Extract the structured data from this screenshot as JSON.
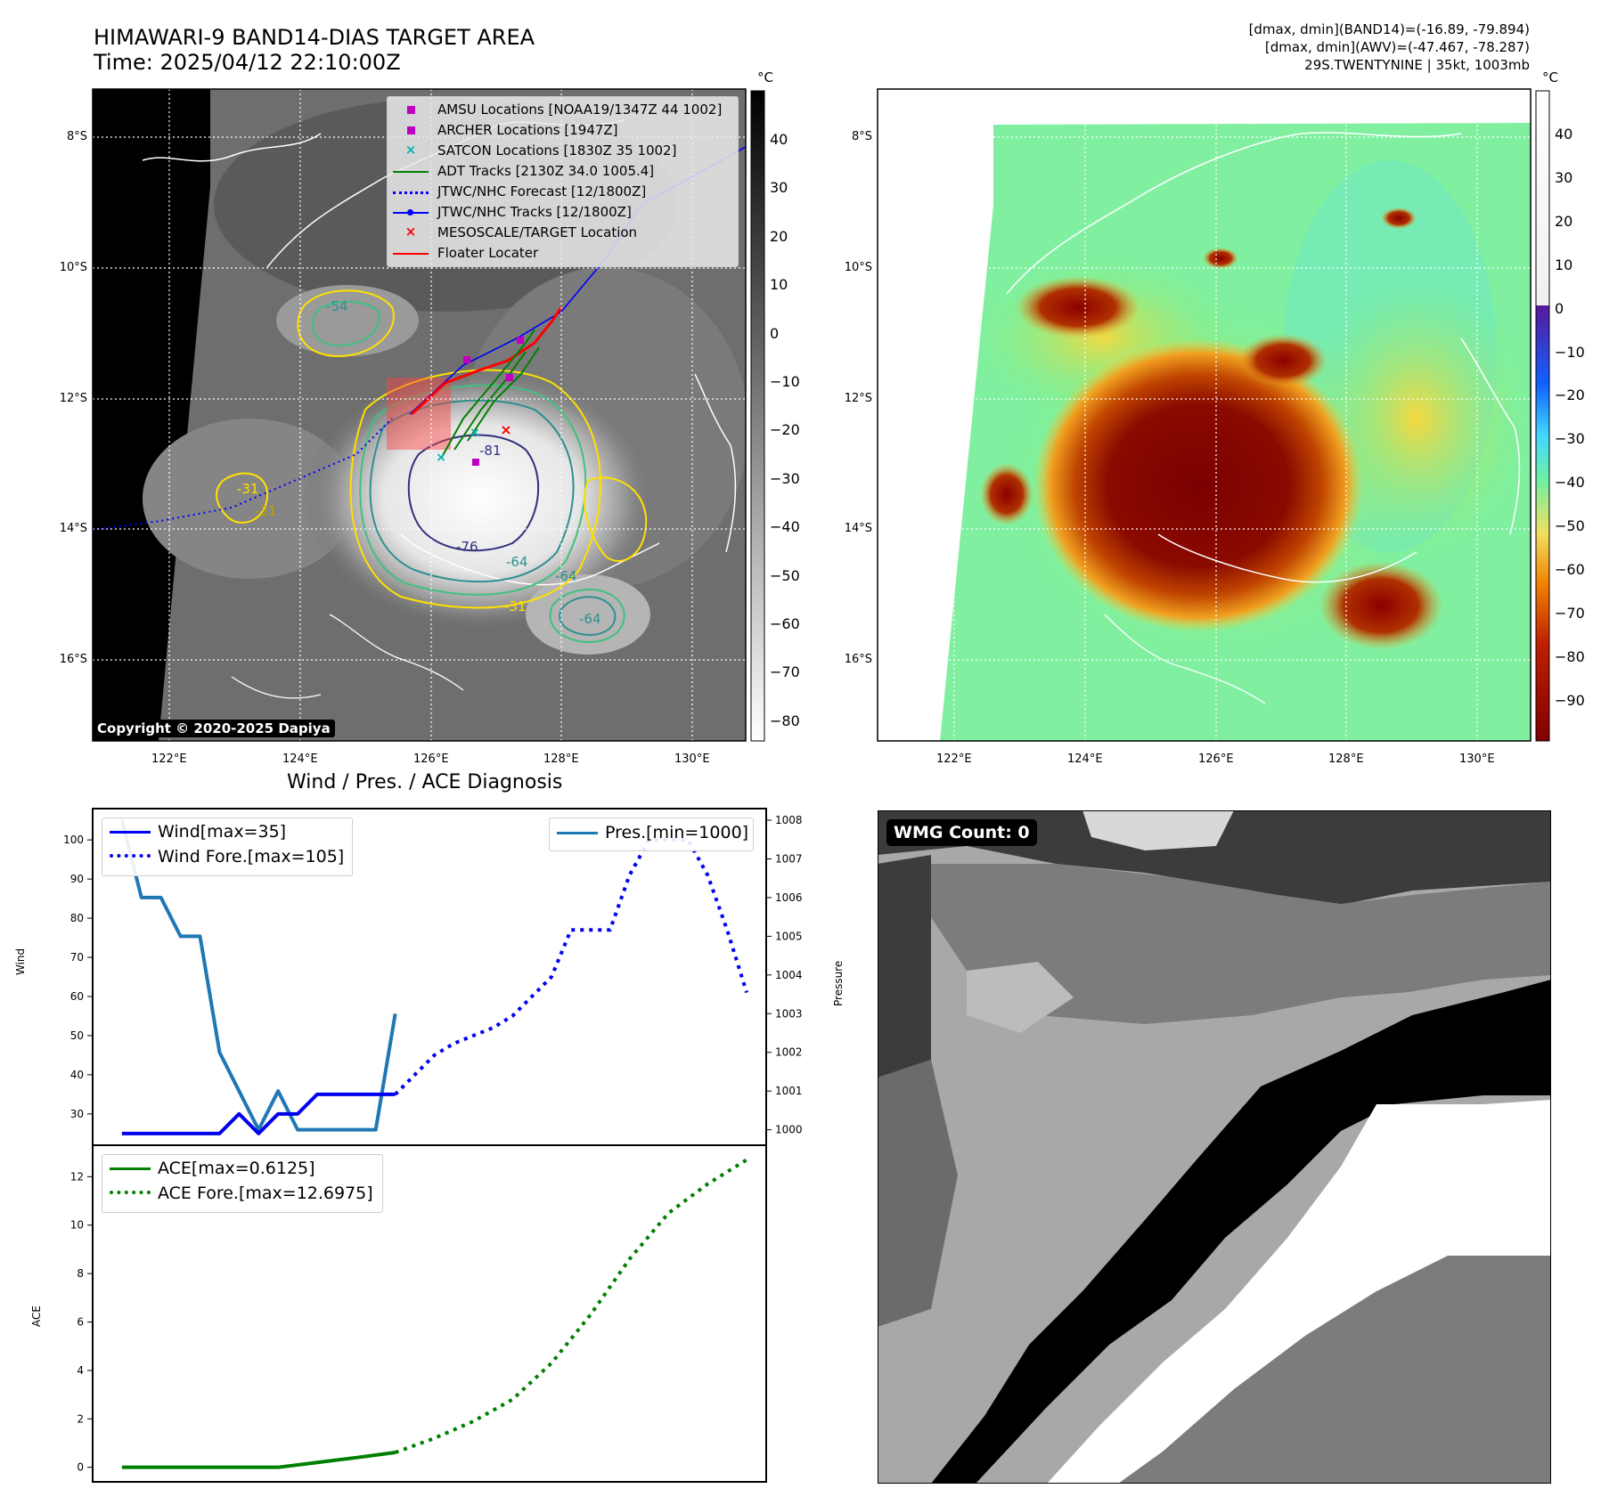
{
  "header": {
    "title_line1": "HIMAWARI-9 BAND14-DIAS TARGET AREA",
    "title_line2": "Time: 2025/04/12 22:10:00Z",
    "info_line1": "[dmax, dmin](BAND14)=(-16.89, -79.894)",
    "info_line2": "[dmax, dmin](AWV)=(-47.467, -78.287)",
    "info_line3": "29S.TWENTYNINE | 35kt, 1003mb"
  },
  "map_common": {
    "lon_ticks": [
      "122°E",
      "124°E",
      "126°E",
      "128°E",
      "130°E"
    ],
    "lat_ticks": [
      "8°S",
      "10°S",
      "12°S",
      "14°S",
      "16°S"
    ]
  },
  "map_left": {
    "legend": [
      {
        "label": "AMSU Locations [NOAA19/1347Z 44 1002]",
        "marker": "square",
        "color": "#c000c0"
      },
      {
        "label": "ARCHER Locations [1947Z]",
        "marker": "square",
        "color": "#c000c0"
      },
      {
        "label": "SATCON Locations [1830Z 35 1002]",
        "marker": "x",
        "color": "#00b5b5"
      },
      {
        "label": "ADT Tracks [2130Z 34.0 1005.4]",
        "marker": "line",
        "color": "#008000"
      },
      {
        "label": "JTWC/NHC Forecast [12/1800Z]",
        "marker": "dotted",
        "color": "#0000ff"
      },
      {
        "label": "JTWC/NHC Tracks [12/1800Z]",
        "marker": "line-dot",
        "color": "#0000ff"
      },
      {
        "label": "MESOSCALE/TARGET Location",
        "marker": "x",
        "color": "#ff0000"
      },
      {
        "label": "Floater Locater",
        "marker": "line",
        "color": "#ff0000"
      }
    ],
    "contour_labels": [
      "-54",
      "-31",
      "-31",
      "-81",
      "-76",
      "-64",
      "-64",
      "-64",
      "-31"
    ],
    "copyright": "Copyright © 2020-2025 Dapiya",
    "colorbar": {
      "unit": "°C",
      "ticks": [
        "40",
        "30",
        "20",
        "10",
        "0",
        "−10",
        "−20",
        "−30",
        "−40",
        "−50",
        "−60",
        "−70",
        "−80"
      ]
    }
  },
  "map_right": {
    "colorbar": {
      "unit": "°C",
      "ticks": [
        "40",
        "30",
        "20",
        "10",
        "0",
        "−10",
        "−20",
        "−30",
        "−40",
        "−50",
        "−60",
        "−70",
        "−80",
        "−90"
      ]
    }
  },
  "diagnosis": {
    "title": "Wind / Pres. / ACE Diagnosis",
    "wind_ylabel": "Wind",
    "pres_ylabel": "Pressure",
    "ace_ylabel": "ACE",
    "wind_legend": [
      "Wind[max=35]",
      "Wind Fore.[max=105]"
    ],
    "pres_legend": [
      "Pres.[min=1000]"
    ],
    "ace_legend": [
      "ACE[max=0.6125]",
      "ACE Fore.[max=12.6975]"
    ]
  },
  "wmg": {
    "label": "WMG Count: 0"
  },
  "colors": {
    "wind": "#0000ee",
    "pressure": "#1f77b4",
    "ace": "#007f00"
  },
  "chart_data": [
    {
      "type": "line",
      "title": "Wind / Pres. / ACE Diagnosis",
      "ylabel": "Wind",
      "ylim": [
        22,
        108
      ],
      "yticks": [
        30,
        40,
        50,
        60,
        70,
        80,
        90,
        100
      ],
      "series": [
        {
          "name": "Wind[max=35]",
          "style": "solid",
          "x": [
            0,
            1,
            2,
            3,
            4,
            5,
            6,
            7,
            8,
            9,
            10,
            11,
            12,
            13,
            14
          ],
          "values": [
            25,
            25,
            25,
            25,
            25,
            25,
            30,
            25,
            30,
            30,
            35,
            35,
            35,
            35,
            35
          ]
        },
        {
          "name": "Wind Fore.[max=105]",
          "style": "dotted",
          "x": [
            14,
            15,
            16,
            17,
            18,
            19,
            20,
            21,
            22,
            23,
            24,
            25,
            26,
            27,
            28,
            29,
            30,
            31,
            32
          ],
          "values": [
            35,
            40,
            45,
            48,
            50,
            52,
            55,
            60,
            65,
            77,
            77,
            77,
            91,
            100,
            100,
            100,
            91,
            77,
            61
          ]
        }
      ]
    },
    {
      "type": "line",
      "ylabel": "Pressure",
      "ylim": [
        999.6,
        1008.3
      ],
      "yticks": [
        1000,
        1001,
        1002,
        1003,
        1004,
        1005,
        1006,
        1007,
        1008
      ],
      "series": [
        {
          "name": "Pres.[min=1000]",
          "style": "solid",
          "x": [
            0,
            1,
            2,
            3,
            4,
            5,
            6,
            7,
            8,
            9,
            10,
            11,
            12,
            13,
            14
          ],
          "values": [
            1008,
            1006,
            1006,
            1005,
            1005,
            1002,
            1001,
            1000,
            1001,
            1000,
            1000,
            1000,
            1000,
            1000,
            1003
          ]
        }
      ]
    },
    {
      "type": "line",
      "ylabel": "ACE",
      "ylim": [
        -0.6,
        13.3
      ],
      "yticks": [
        0,
        2,
        4,
        6,
        8,
        10,
        12
      ],
      "series": [
        {
          "name": "ACE[max=0.6125]",
          "style": "solid",
          "x": [
            0,
            2,
            4,
            6,
            8,
            10,
            12,
            14
          ],
          "values": [
            0,
            0,
            0,
            0,
            0,
            0.2,
            0.4,
            0.6125
          ]
        },
        {
          "name": "ACE Fore.[max=12.6975]",
          "style": "dotted",
          "x": [
            14,
            16,
            18,
            20,
            22,
            24,
            26,
            28,
            30,
            32
          ],
          "values": [
            0.6125,
            1.2,
            1.9,
            2.8,
            4.3,
            6.3,
            8.6,
            10.5,
            11.7,
            12.6975
          ]
        }
      ]
    }
  ]
}
